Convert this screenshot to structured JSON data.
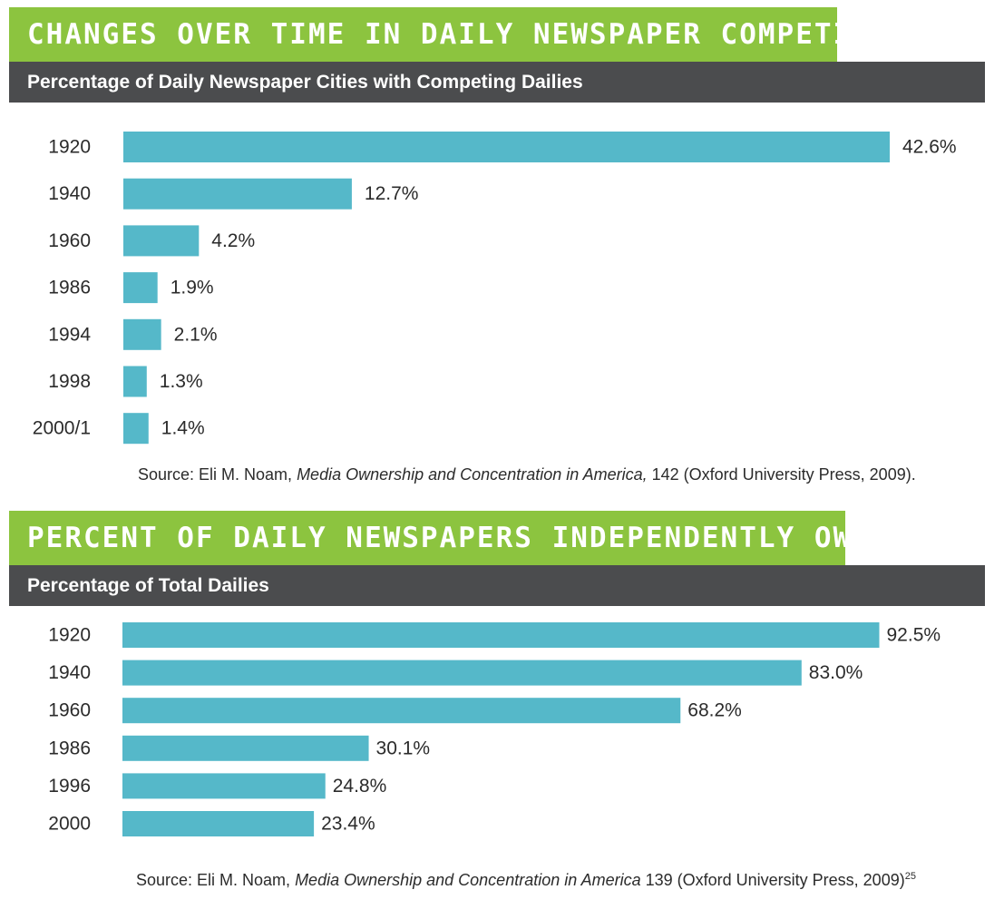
{
  "colors": {
    "accent_green": "#8cc43f",
    "header_gray": "#4b4c4e",
    "bar": "#55b8c9",
    "text": "#2b2b2b"
  },
  "chart_data": [
    {
      "type": "bar",
      "orientation": "horizontal",
      "title": "CHANGES OVER TIME IN DAILY NEWSPAPER COMPETITION",
      "subtitle": "Percentage of Daily Newspaper Cities with Competing Dailies",
      "categories": [
        "1920",
        "1940",
        "1960",
        "1986",
        "1994",
        "1998",
        "2000/1"
      ],
      "values": [
        42.6,
        12.7,
        4.2,
        1.9,
        2.1,
        1.3,
        1.4
      ],
      "value_labels": [
        "42.6%",
        "12.7%",
        "4.2%",
        "1.9%",
        "2.1%",
        "1.3%",
        "1.4%"
      ],
      "xlim": [
        0,
        42.6
      ],
      "grid": false,
      "source": {
        "prefix": "Source: Eli M. Noam, ",
        "title": "Media Ownership and Concentration in America,",
        "suffix": " 142 (Oxford University Press, 2009)."
      }
    },
    {
      "type": "bar",
      "orientation": "horizontal",
      "title": "PERCENT OF DAILY NEWSPAPERS INDEPENDENTLY OWNED",
      "subtitle": "Percentage of Total Dailies",
      "categories": [
        "1920",
        "1940",
        "1960",
        "1986",
        "1996",
        "2000"
      ],
      "values": [
        92.5,
        83.0,
        68.2,
        30.1,
        24.8,
        23.4
      ],
      "value_labels": [
        "92.5%",
        "83.0%",
        "68.2%",
        "30.1%",
        "24.8%",
        "23.4%"
      ],
      "xlim": [
        0,
        100
      ],
      "grid": false,
      "source": {
        "prefix": "Source: Eli M. Noam, ",
        "title": "Media Ownership and Concentration in America",
        "suffix": " 139 (Oxford University Press, 2009)",
        "footnote": "25"
      }
    }
  ]
}
